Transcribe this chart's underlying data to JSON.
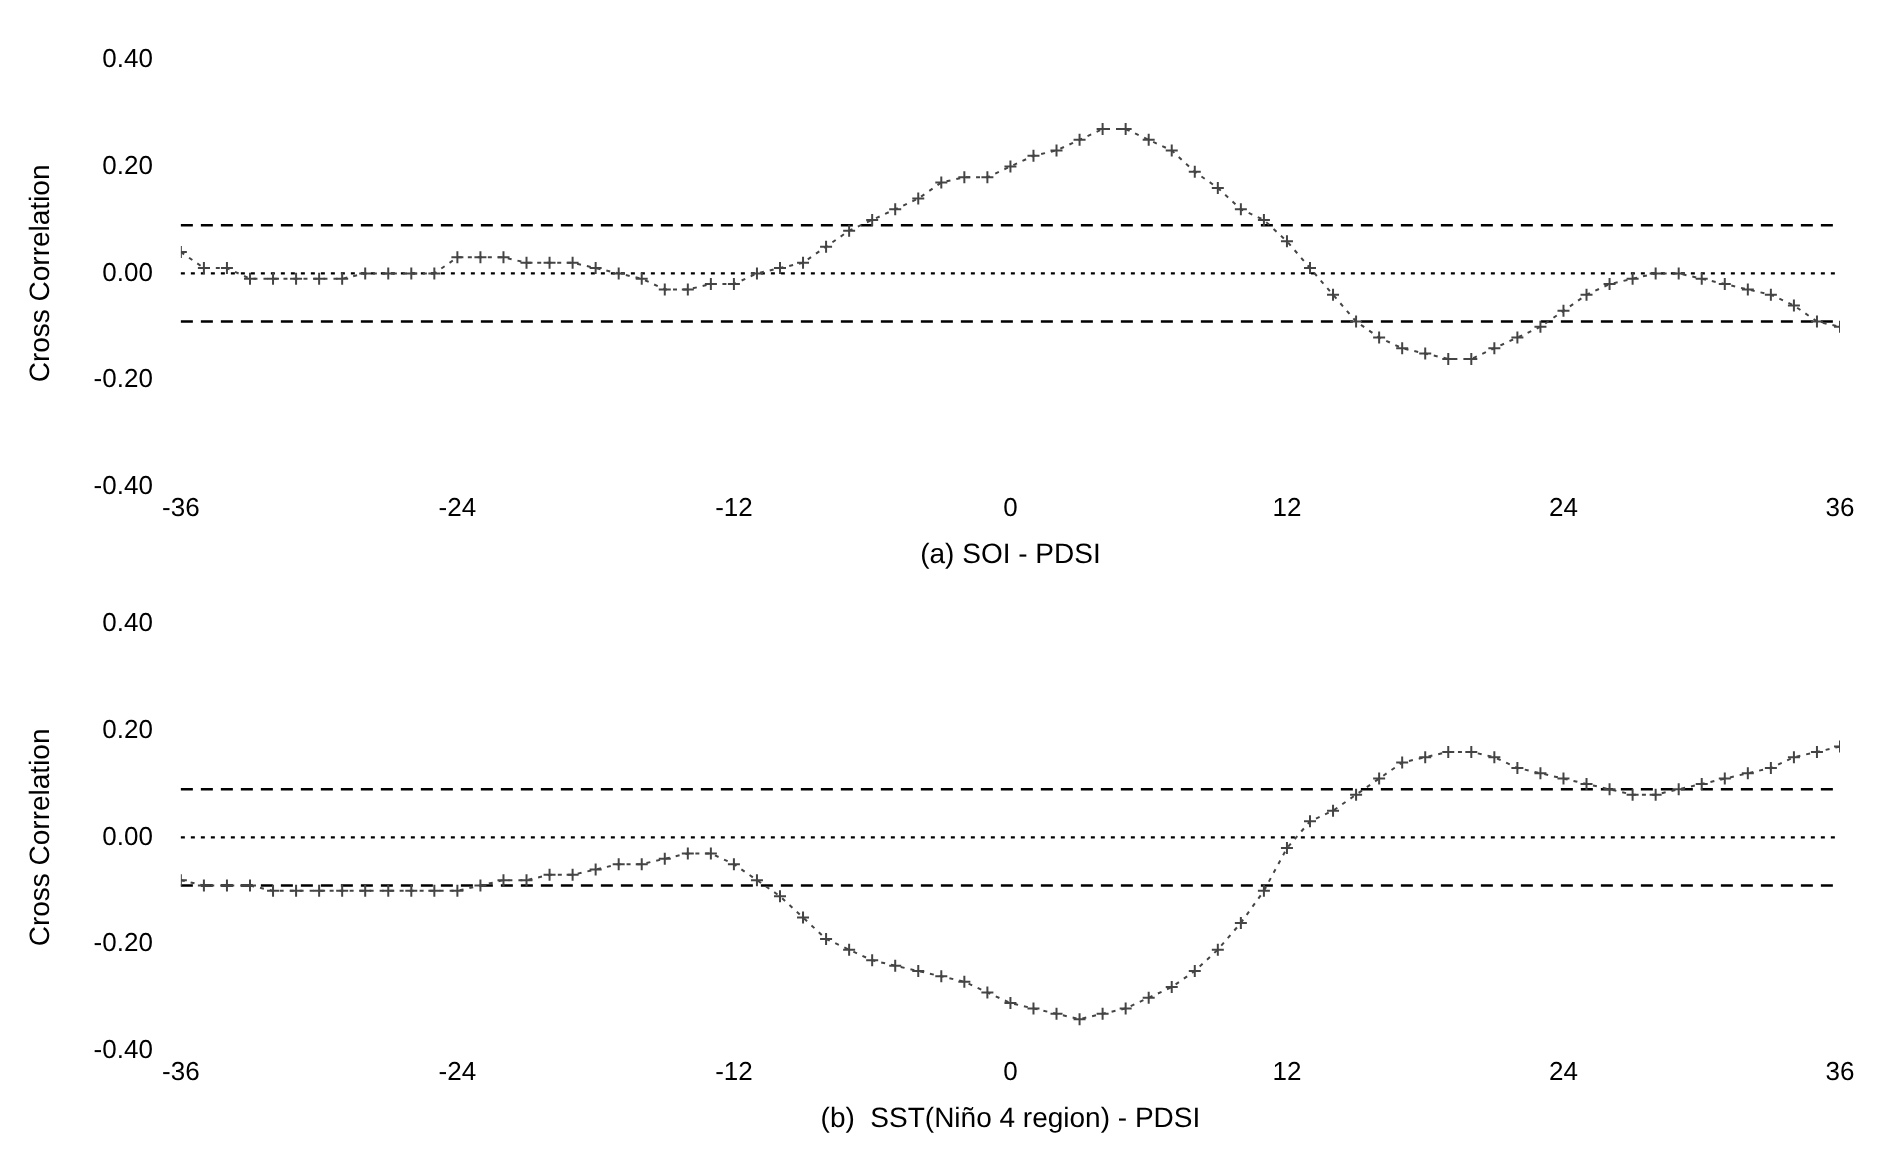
{
  "chart_data": [
    {
      "type": "line",
      "xlabel": "(a) SOI - PDSI",
      "ylabel": "Cross Correlation",
      "x": [
        -36,
        -35,
        -34,
        -33,
        -32,
        -31,
        -30,
        -29,
        -28,
        -27,
        -26,
        -25,
        -24,
        -23,
        -22,
        -21,
        -20,
        -19,
        -18,
        -17,
        -16,
        -15,
        -14,
        -13,
        -12,
        -11,
        -10,
        -9,
        -8,
        -7,
        -6,
        -5,
        -4,
        -3,
        -2,
        -1,
        0,
        1,
        2,
        3,
        4,
        5,
        6,
        7,
        8,
        9,
        10,
        11,
        12,
        13,
        14,
        15,
        16,
        17,
        18,
        19,
        20,
        21,
        22,
        23,
        24,
        25,
        26,
        27,
        28,
        29,
        30,
        31,
        32,
        33,
        34,
        35,
        36
      ],
      "series": [
        {
          "color": "#444444",
          "values": [
            0.04,
            0.01,
            0.01,
            -0.01,
            -0.01,
            -0.01,
            -0.01,
            -0.01,
            0.0,
            0.0,
            0.0,
            0.0,
            0.03,
            0.03,
            0.03,
            0.02,
            0.02,
            0.02,
            0.01,
            0.0,
            -0.01,
            -0.03,
            -0.03,
            -0.02,
            -0.02,
            0.0,
            0.01,
            0.02,
            0.05,
            0.08,
            0.1,
            0.12,
            0.14,
            0.17,
            0.18,
            0.18,
            0.2,
            0.22,
            0.23,
            0.25,
            0.27,
            0.27,
            0.25,
            0.23,
            0.19,
            0.16,
            0.12,
            0.1,
            0.06,
            0.01,
            -0.04,
            -0.09,
            -0.12,
            -0.14,
            -0.15,
            -0.16,
            -0.16,
            -0.14,
            -0.12,
            -0.1,
            -0.07,
            -0.04,
            -0.02,
            -0.01,
            0.0,
            0.0,
            -0.01,
            -0.02,
            -0.03,
            -0.04,
            -0.06,
            -0.09,
            -0.1
          ]
        }
      ],
      "xlim": [
        -36,
        36
      ],
      "xticks": [
        -36,
        -24,
        -12,
        0,
        12,
        24,
        36
      ],
      "ylim": [
        -0.4,
        0.4
      ],
      "yticks": [
        {
          "value": -0.4,
          "label": "-0.40"
        },
        {
          "value": -0.2,
          "label": "-0.20"
        },
        {
          "value": 0,
          "label": "0.00"
        },
        {
          "value": 0.2,
          "label": "0.20"
        },
        {
          "value": 0.4,
          "label": "0.40"
        }
      ],
      "ref_lines": [
        {
          "axis": "y",
          "value": 0.09,
          "color": "#000000",
          "line_style": "dashed"
        },
        {
          "axis": "y",
          "value": -0.09,
          "color": "#000000",
          "line_style": "dashed"
        },
        {
          "axis": "y",
          "value": 0,
          "color": "#000000",
          "line_style": "dotted"
        }
      ],
      "grid": false,
      "legend": false,
      "marker": "cross",
      "line_style": "dotted"
    },
    {
      "type": "line",
      "xlabel": "(b)  SST(Niño 4 region) - PDSI",
      "ylabel": "Cross Correlation",
      "x": [
        -36,
        -35,
        -34,
        -33,
        -32,
        -31,
        -30,
        -29,
        -28,
        -27,
        -26,
        -25,
        -24,
        -23,
        -22,
        -21,
        -20,
        -19,
        -18,
        -17,
        -16,
        -15,
        -14,
        -13,
        -12,
        -11,
        -10,
        -9,
        -8,
        -7,
        -6,
        -5,
        -4,
        -3,
        -2,
        -1,
        0,
        1,
        2,
        3,
        4,
        5,
        6,
        7,
        8,
        9,
        10,
        11,
        12,
        13,
        14,
        15,
        16,
        17,
        18,
        19,
        20,
        21,
        22,
        23,
        24,
        25,
        26,
        27,
        28,
        29,
        30,
        31,
        32,
        33,
        34,
        35,
        36
      ],
      "series": [
        {
          "color": "#444444",
          "values": [
            -0.08,
            -0.09,
            -0.09,
            -0.09,
            -0.1,
            -0.1,
            -0.1,
            -0.1,
            -0.1,
            -0.1,
            -0.1,
            -0.1,
            -0.1,
            -0.09,
            -0.08,
            -0.08,
            -0.07,
            -0.07,
            -0.06,
            -0.05,
            -0.05,
            -0.04,
            -0.03,
            -0.03,
            -0.05,
            -0.08,
            -0.11,
            -0.15,
            -0.19,
            -0.21,
            -0.23,
            -0.24,
            -0.25,
            -0.26,
            -0.27,
            -0.29,
            -0.31,
            -0.32,
            -0.33,
            -0.34,
            -0.33,
            -0.32,
            -0.3,
            -0.28,
            -0.25,
            -0.21,
            -0.16,
            -0.1,
            -0.02,
            0.03,
            0.05,
            0.08,
            0.11,
            0.14,
            0.15,
            0.16,
            0.16,
            0.15,
            0.13,
            0.12,
            0.11,
            0.1,
            0.09,
            0.08,
            0.08,
            0.09,
            0.1,
            0.11,
            0.12,
            0.13,
            0.15,
            0.16,
            0.17
          ]
        }
      ],
      "xlim": [
        -36,
        36
      ],
      "xticks": [
        -36,
        -24,
        -12,
        0,
        12,
        24,
        36
      ],
      "ylim": [
        -0.4,
        0.4
      ],
      "yticks": [
        {
          "value": -0.4,
          "label": "-0.40"
        },
        {
          "value": -0.2,
          "label": "-0.20"
        },
        {
          "value": 0,
          "label": "0.00"
        },
        {
          "value": 0.2,
          "label": "0.20"
        },
        {
          "value": 0.4,
          "label": "0.40"
        }
      ],
      "ref_lines": [
        {
          "axis": "y",
          "value": 0.09,
          "color": "#000000",
          "line_style": "dashed"
        },
        {
          "axis": "y",
          "value": -0.09,
          "color": "#000000",
          "line_style": "dashed"
        },
        {
          "axis": "y",
          "value": 0,
          "color": "#000000",
          "line_style": "dotted"
        }
      ],
      "grid": false,
      "legend": false,
      "marker": "cross",
      "line_style": "dotted"
    }
  ]
}
